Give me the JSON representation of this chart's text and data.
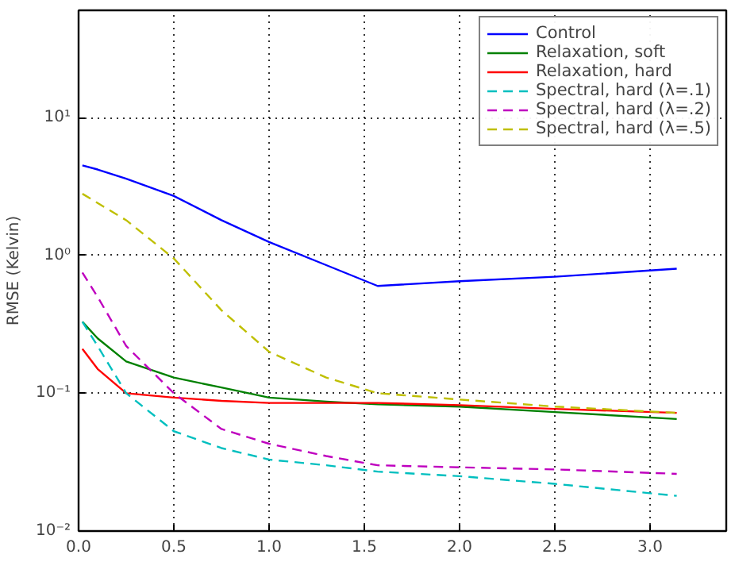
{
  "chart_data": {
    "type": "line",
    "ylabel": "RMSE (Kelvin)",
    "log": "y",
    "grid": true,
    "legend": "top right",
    "xlim": [
      0,
      3.4
    ],
    "ylim": [
      0.01,
      60
    ],
    "xticks": [
      {
        "value": 0,
        "label": "0.0"
      },
      {
        "value": 0.5,
        "label": "0.5"
      },
      {
        "value": 1,
        "label": "1.0"
      },
      {
        "value": 1.5,
        "label": "1.5"
      },
      {
        "value": 2,
        "label": "2.0"
      },
      {
        "value": 2.5,
        "label": "2.5"
      },
      {
        "value": 3,
        "label": "3.0"
      }
    ],
    "yticks": [
      {
        "value": 0.01,
        "label": "10⁻²"
      },
      {
        "value": 0.1,
        "label": "10⁻¹"
      },
      {
        "value": 1,
        "label": "10⁰"
      },
      {
        "value": 10,
        "label": "10¹"
      }
    ],
    "x": [
      0.02,
      0.1,
      0.25,
      0.5,
      0.75,
      1.0,
      1.3,
      1.57,
      2.0,
      2.5,
      3.14
    ],
    "series": [
      {
        "name": "Control",
        "color": "#0000ff",
        "line_style": "solid",
        "values": [
          4.5,
          4.2,
          3.6,
          2.7,
          1.8,
          1.25,
          0.85,
          0.6,
          0.65,
          0.7,
          0.8
        ]
      },
      {
        "name": "Relaxation, soft",
        "color": "#008000",
        "line_style": "solid",
        "values": [
          0.33,
          0.25,
          0.17,
          0.13,
          0.11,
          0.093,
          0.087,
          0.083,
          0.08,
          0.073,
          0.065
        ]
      },
      {
        "name": "Relaxation, hard",
        "color": "#ff0000",
        "line_style": "solid",
        "values": [
          0.21,
          0.15,
          0.1,
          0.093,
          0.088,
          0.085,
          0.085,
          0.085,
          0.082,
          0.077,
          0.072
        ]
      },
      {
        "name": "Spectral, hard (λ=.1)",
        "color": "#00bfbf",
        "line_style": "dashed",
        "values": [
          0.33,
          0.22,
          0.1,
          0.053,
          0.04,
          0.033,
          0.03,
          0.027,
          0.025,
          0.022,
          0.018
        ]
      },
      {
        "name": "Spectral, hard (λ=.2)",
        "color": "#bf00bf",
        "line_style": "dashed",
        "values": [
          0.75,
          0.5,
          0.22,
          0.1,
          0.055,
          0.043,
          0.035,
          0.03,
          0.029,
          0.028,
          0.026
        ]
      },
      {
        "name": "Spectral, hard (λ=.5)",
        "color": "#bfbf00",
        "line_style": "dashed",
        "values": [
          2.8,
          2.4,
          1.8,
          0.95,
          0.4,
          0.2,
          0.13,
          0.1,
          0.09,
          0.08,
          0.072
        ]
      }
    ]
  }
}
